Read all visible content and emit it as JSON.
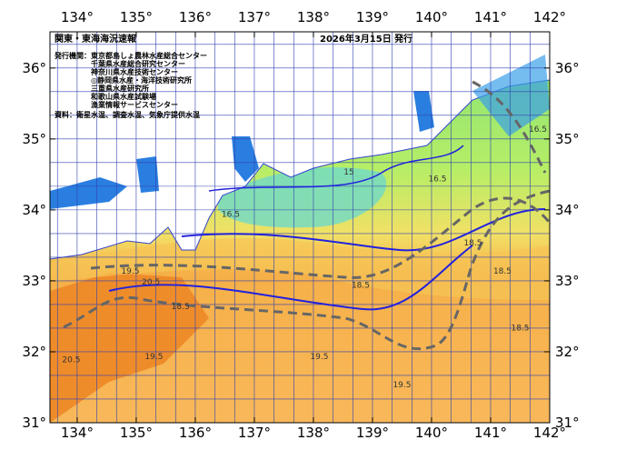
{
  "map": {
    "title": "関東・東海海況速報",
    "issue_date": "2026年3月15日 発行",
    "publisher_label": "発行機関：",
    "publishers": [
      "東京都島しょ農林水産総合センター",
      "千葉県水産総合研究センター",
      "神奈川県水産技術センター",
      "◎静岡県水産・海洋技術研究所",
      "三重県水産研究所",
      "和歌山県水産試験場",
      "漁業情報サービスセンター"
    ],
    "sources": "資料：衛星水温、調査水温、気象庁提供水温",
    "lon_range": [
      133.54,
      142
    ],
    "lat_range": [
      31,
      36.51
    ],
    "lon_ticks": [
      {
        "value": 134,
        "label": "134°"
      },
      {
        "value": 135,
        "label": "135°"
      },
      {
        "value": 136,
        "label": "136°"
      },
      {
        "value": 137,
        "label": "137°"
      },
      {
        "value": 138,
        "label": "138°"
      },
      {
        "value": 139,
        "label": "139°"
      },
      {
        "value": 140,
        "label": "140°"
      },
      {
        "value": 141,
        "label": "141°"
      },
      {
        "value": 142,
        "label": "142°"
      }
    ],
    "lat_ticks": [
      {
        "value": 31,
        "label": "31°"
      },
      {
        "value": 32,
        "label": "32°"
      },
      {
        "value": 33,
        "label": "33°"
      },
      {
        "value": 34,
        "label": "34°"
      },
      {
        "value": 35,
        "label": "35°"
      },
      {
        "value": 36,
        "label": "36°"
      }
    ],
    "contour_labels": [
      {
        "label": "19.5",
        "lon": 134.9,
        "lat": 33.1
      },
      {
        "label": "20.5",
        "lon": 135.25,
        "lat": 32.95
      },
      {
        "label": "20.5",
        "lon": 133.9,
        "lat": 31.85
      },
      {
        "label": "19.5",
        "lon": 135.3,
        "lat": 31.9
      },
      {
        "label": "18.5",
        "lon": 135.75,
        "lat": 32.6
      },
      {
        "label": "18.5",
        "lon": 138.8,
        "lat": 32.9
      },
      {
        "label": "19.5",
        "lon": 138.1,
        "lat": 31.9
      },
      {
        "label": "18.5",
        "lon": 140.7,
        "lat": 33.5
      },
      {
        "label": "18.5",
        "lon": 141.2,
        "lat": 33.1
      },
      {
        "label": "18.5",
        "lon": 141.5,
        "lat": 32.3
      },
      {
        "label": "16.5",
        "lon": 136.6,
        "lat": 33.9
      },
      {
        "label": "16.5",
        "lon": 140.1,
        "lat": 34.4
      },
      {
        "label": "15",
        "lon": 138.6,
        "lat": 34.5
      },
      {
        "label": "16.5",
        "lon": 141.8,
        "lat": 35.1
      },
      {
        "label": "19.5",
        "lon": 139.5,
        "lat": 31.5
      }
    ]
  }
}
